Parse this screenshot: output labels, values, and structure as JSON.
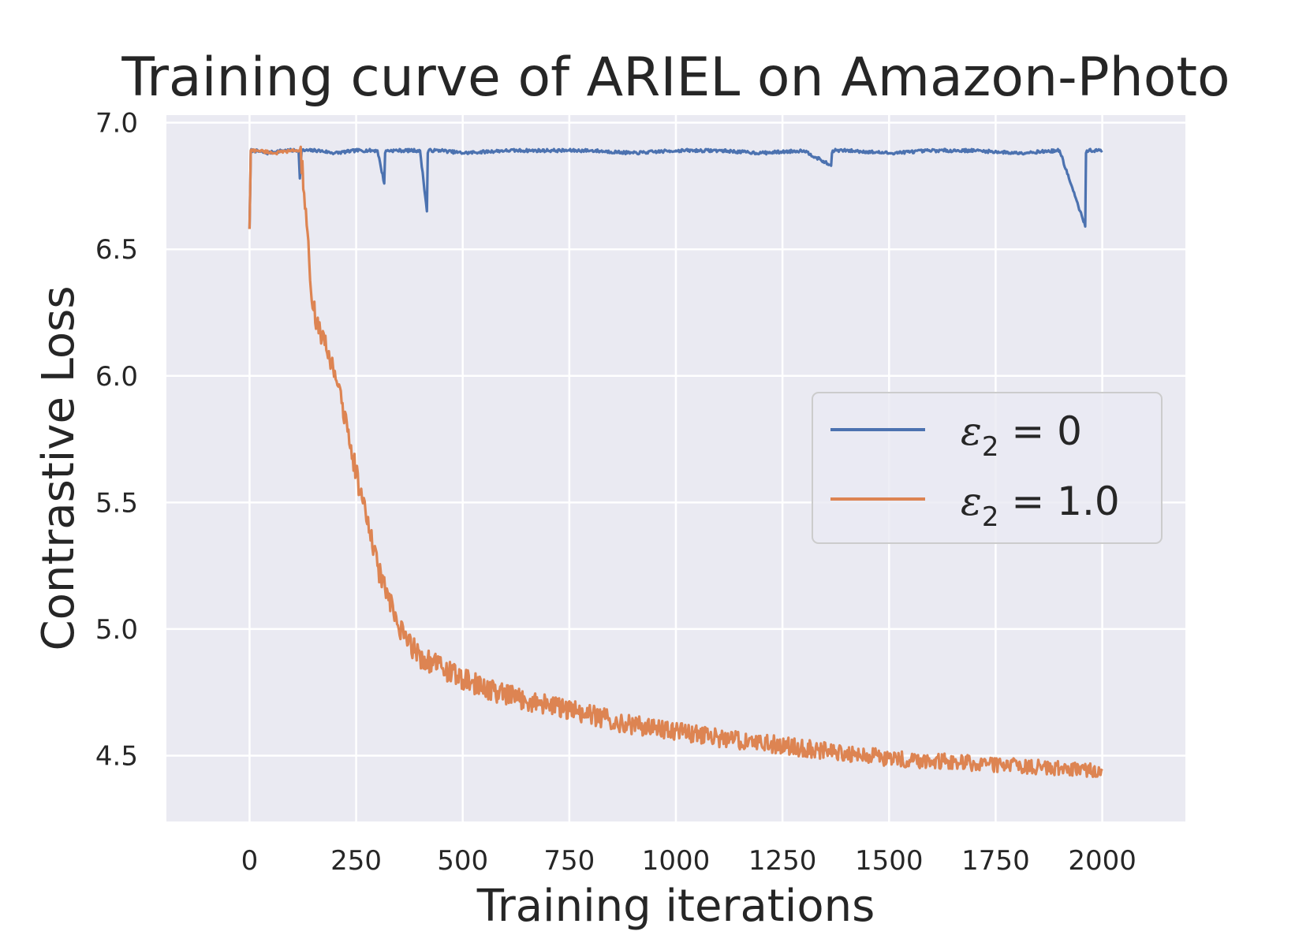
{
  "chart_data": {
    "type": "line",
    "title": "Training curve of ARIEL on Amazon-Photo",
    "xlabel": "Training iterations",
    "ylabel": "Contrastive Loss",
    "xlim": [
      -195,
      2195
    ],
    "ylim": [
      4.24,
      7.03
    ],
    "xticks": [
      0,
      250,
      500,
      750,
      1000,
      1250,
      1500,
      1750,
      2000
    ],
    "xtick_labels": [
      "0",
      "250",
      "500",
      "750",
      "1000",
      "1250",
      "1500",
      "1750",
      "2000"
    ],
    "yticks": [
      4.5,
      5.0,
      5.5,
      6.0,
      6.5,
      7.0
    ],
    "ytick_labels": [
      "4.5",
      "5.0",
      "5.5",
      "6.0",
      "6.5",
      "7.0"
    ],
    "grid": true,
    "legend_position": "center-right",
    "series": [
      {
        "name": "ε2 = 0",
        "legend_symbol": "ε",
        "legend_sub": "2",
        "legend_rest": " = 0",
        "color": "#4c72b0",
        "x": [
          0,
          3,
          10,
          40,
          80,
          115,
          118,
          122,
          160,
          200,
          250,
          300,
          316,
          318,
          320,
          360,
          400,
          416,
          418,
          420,
          450,
          500,
          600,
          700,
          800,
          900,
          1000,
          1100,
          1200,
          1300,
          1364,
          1366,
          1368,
          1400,
          1500,
          1600,
          1700,
          1800,
          1900,
          1960,
          1962,
          1964,
          2000
        ],
        "y": [
          6.58,
          6.89,
          6.89,
          6.88,
          6.89,
          6.89,
          6.78,
          6.89,
          6.89,
          6.88,
          6.89,
          6.89,
          6.76,
          6.88,
          6.89,
          6.89,
          6.89,
          6.65,
          6.88,
          6.89,
          6.89,
          6.88,
          6.89,
          6.89,
          6.89,
          6.88,
          6.89,
          6.89,
          6.88,
          6.89,
          6.83,
          6.88,
          6.89,
          6.89,
          6.88,
          6.89,
          6.89,
          6.88,
          6.89,
          6.59,
          6.88,
          6.89,
          6.89
        ]
      },
      {
        "name": "ε2 = 1.0",
        "legend_symbol": "ε",
        "legend_sub": "2",
        "legend_rest": " = 1.0",
        "color": "#dd8452",
        "x": [
          0,
          3,
          20,
          60,
          100,
          118,
          125,
          130,
          140,
          150,
          170,
          200,
          230,
          260,
          300,
          350,
          400,
          450,
          500,
          600,
          700,
          800,
          900,
          1000,
          1100,
          1200,
          1300,
          1400,
          1500,
          1600,
          1700,
          1800,
          1900,
          2000
        ],
        "y": [
          6.58,
          6.89,
          6.89,
          6.88,
          6.89,
          6.89,
          6.8,
          6.66,
          6.45,
          6.26,
          6.15,
          6.02,
          5.78,
          5.54,
          5.25,
          5.0,
          4.89,
          4.85,
          4.8,
          4.74,
          4.7,
          4.66,
          4.62,
          4.6,
          4.57,
          4.55,
          4.53,
          4.51,
          4.49,
          4.48,
          4.47,
          4.46,
          4.45,
          4.44
        ]
      }
    ]
  }
}
